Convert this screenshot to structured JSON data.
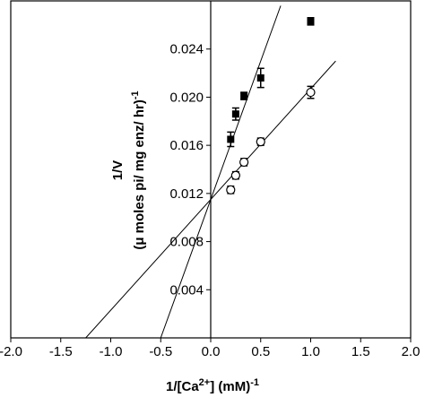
{
  "chart_data": {
    "type": "scatter",
    "xlabel": [
      "1/[Ca",
      "2+",
      "] (mM)",
      "-1"
    ],
    "ylabel": [
      "1/V",
      "(μ moles pi/ mg enz/ hr)",
      "-1"
    ],
    "xlim": [
      -2,
      2
    ],
    "ylim": [
      0,
      0.028
    ],
    "xticks": [
      {
        "value": -2,
        "label": "-2.0"
      },
      {
        "value": -1.5,
        "label": "-1.5"
      },
      {
        "value": -1,
        "label": "-1.0"
      },
      {
        "value": -0.5,
        "label": "-0.5"
      },
      {
        "value": 0,
        "label": "0.0"
      },
      {
        "value": 0.5,
        "label": "0.5"
      },
      {
        "value": 1,
        "label": "1.0"
      },
      {
        "value": 1.5,
        "label": "1.5"
      },
      {
        "value": 2,
        "label": "2.0"
      }
    ],
    "yticks": [
      0.004,
      0.008,
      0.012,
      0.016,
      {
        "value": 0.02,
        "label": "0.020"
      },
      0.024
    ],
    "series": [
      {
        "marker": "square",
        "color": "#000000",
        "x": [
          0.2,
          0.25,
          0.333,
          0.5,
          1.0
        ],
        "values": [
          0.0165,
          0.0186,
          0.0201,
          0.0216,
          0.0263
        ],
        "errors": [
          0.0006,
          0.0005,
          0.0003,
          0.0008,
          0.0003
        ]
      },
      {
        "marker": "open-circle",
        "color": "#000000",
        "x": [
          0.2,
          0.25,
          0.333,
          0.5,
          1.0
        ],
        "values": [
          0.0123,
          0.0135,
          0.0146,
          0.0163,
          0.0204
        ],
        "errors": [
          0.0003,
          0.0003,
          0.0003,
          0.0003,
          0.0005
        ]
      }
    ],
    "fits": [
      {
        "x": [
          -0.5,
          0.7
        ],
        "values": [
          0,
          0.0276
        ]
      },
      {
        "x": [
          -1.25,
          1.25
        ],
        "values": [
          0,
          0.023
        ]
      }
    ]
  }
}
